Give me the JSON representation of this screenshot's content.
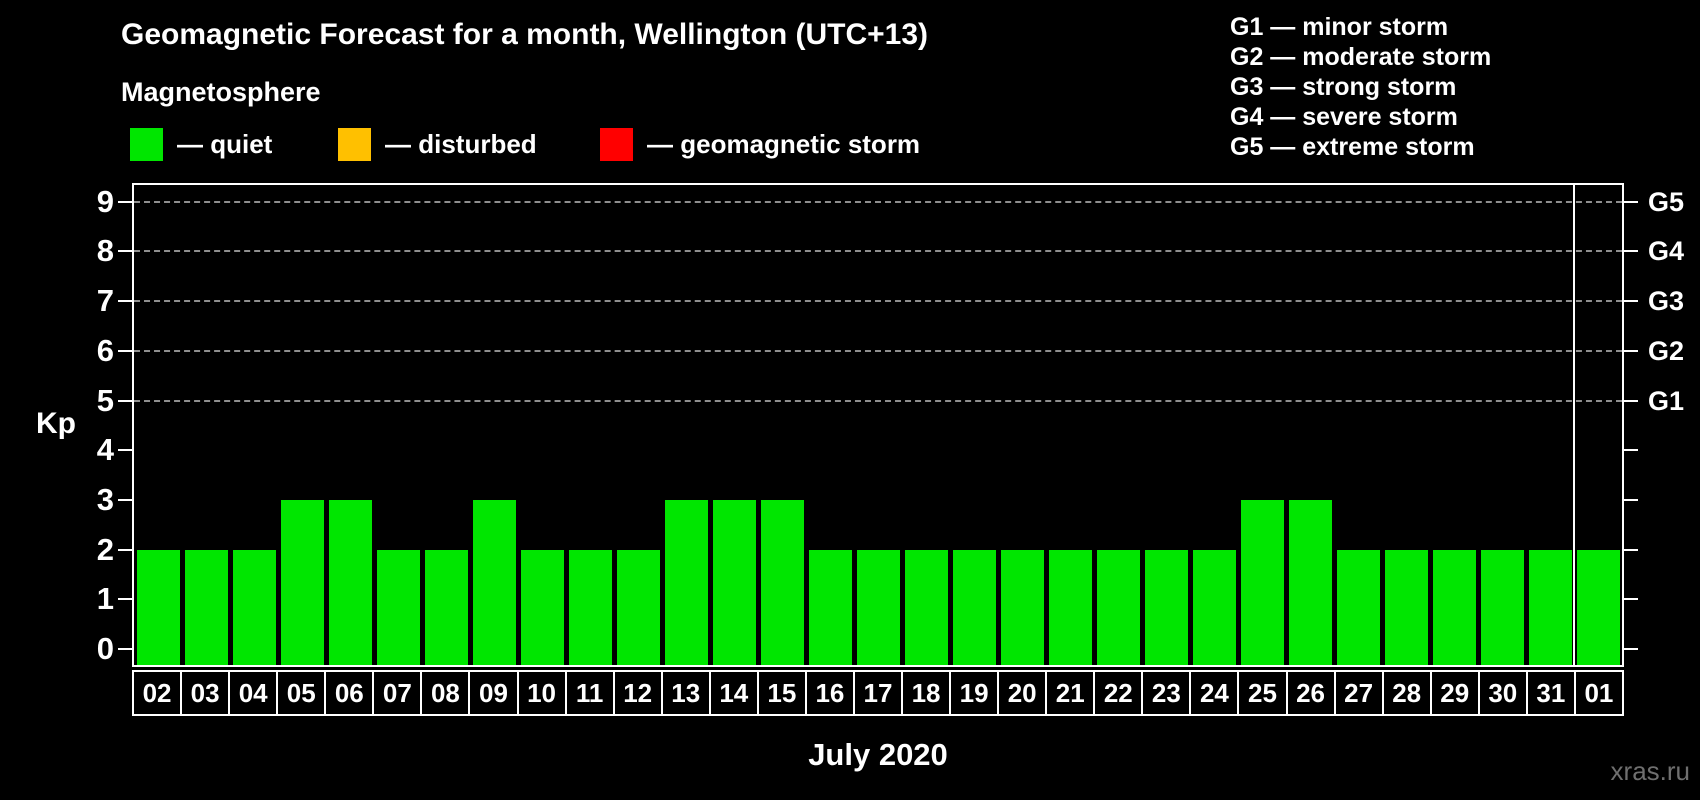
{
  "header": {
    "title": "Geomagnetic Forecast for a month, Wellington (UTC+13)",
    "subtitle": "Magnetosphere"
  },
  "legend": {
    "items": [
      {
        "name": "quiet",
        "label": "— quiet",
        "color": "#00e600"
      },
      {
        "name": "disturbed",
        "label": "— disturbed",
        "color": "#ffc000"
      },
      {
        "name": "geomagnetic-storm",
        "label": "— geomagnetic storm",
        "color": "#ff0000"
      }
    ]
  },
  "storm_scale": {
    "items": [
      "G1 — minor storm",
      "G2 — moderate storm",
      "G3 — strong storm",
      "G4 — severe storm",
      "G5 — extreme storm"
    ]
  },
  "watermark": "xras.ru",
  "chart_data": {
    "type": "bar",
    "title": "Geomagnetic Forecast for a month, Wellington (UTC+13)",
    "xlabel": "July 2020",
    "ylabel": "Kp",
    "ylim": [
      0,
      9
    ],
    "y_ticks": [
      0,
      1,
      2,
      3,
      4,
      5,
      6,
      7,
      8,
      9
    ],
    "gridlines_at_kp": [
      5,
      6,
      7,
      8,
      9
    ],
    "right_axis_labels": [
      {
        "text": "G1",
        "kp": 5
      },
      {
        "text": "G2",
        "kp": 6
      },
      {
        "text": "G3",
        "kp": 7
      },
      {
        "text": "G4",
        "kp": 8
      },
      {
        "text": "G5",
        "kp": 9
      }
    ],
    "categories": [
      "02",
      "03",
      "04",
      "05",
      "06",
      "07",
      "08",
      "09",
      "10",
      "11",
      "12",
      "13",
      "14",
      "15",
      "16",
      "17",
      "18",
      "19",
      "20",
      "21",
      "22",
      "23",
      "24",
      "25",
      "26",
      "27",
      "28",
      "29",
      "30",
      "31",
      "01"
    ],
    "values": [
      2,
      2,
      2,
      3,
      3,
      2,
      2,
      3,
      2,
      2,
      2,
      3,
      3,
      3,
      2,
      2,
      2,
      2,
      2,
      2,
      2,
      2,
      2,
      3,
      3,
      2,
      2,
      2,
      2,
      2,
      2
    ],
    "bar_status": "quiet",
    "bar_color": "#00e600",
    "month_separator_after_index": 29,
    "legend_position": "top",
    "grid": "dashed horizontal at Kp 5-9 only",
    "background": "#000000"
  }
}
